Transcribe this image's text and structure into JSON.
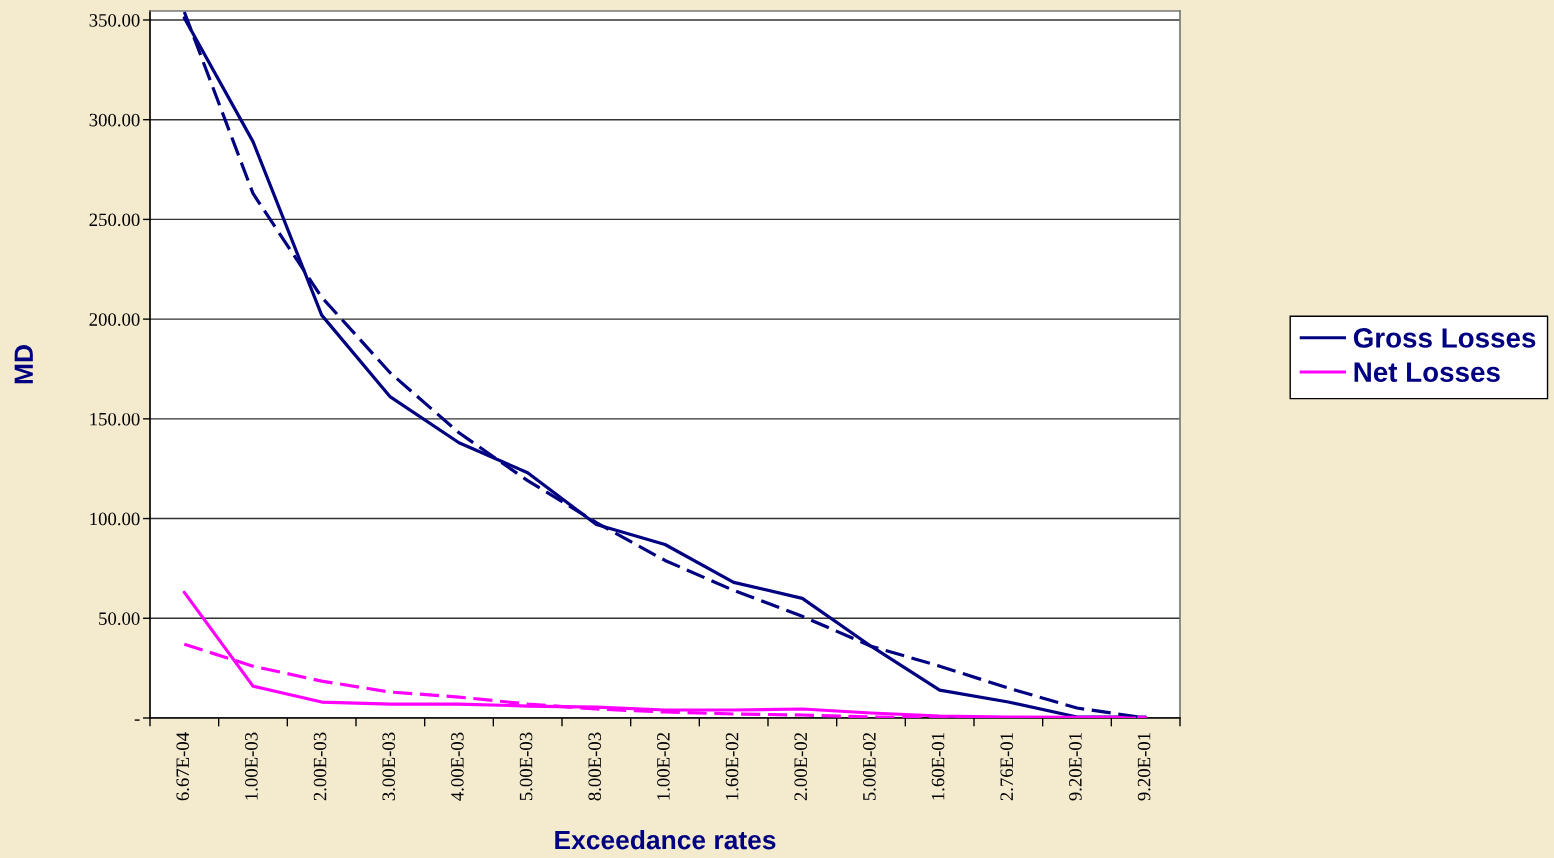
{
  "chart_data": {
    "type": "line",
    "xlabel": "Exceedance rates",
    "ylabel": "MD",
    "categories": [
      "6.67E-04",
      "1.00E-03",
      "2.00E-03",
      "3.00E-03",
      "4.00E-03",
      "5.00E-03",
      "8.00E-03",
      "1.00E-02",
      "1.60E-02",
      "2.00E-02",
      "5.00E-02",
      "1.60E-01",
      "2.76E-01",
      "9.20E-01",
      "9.20E-01"
    ],
    "series": [
      {
        "name": "Gross Losses",
        "color": "#000080",
        "values": [
          351,
          289,
          202,
          161,
          138,
          123,
          97,
          87,
          68,
          60,
          36,
          14,
          8,
          0.5,
          0.5
        ]
      },
      {
        "name": "Net Losses",
        "color": "#ff00ff",
        "values": [
          63,
          16,
          8,
          7,
          7,
          6,
          5.5,
          4,
          4,
          4.5,
          2.5,
          1,
          0.5,
          0.3,
          0.3
        ]
      },
      {
        "color": "#000080",
        "line_style": "dashed",
        "values": [
          354,
          263,
          211,
          173,
          143,
          119,
          98,
          79,
          64,
          51,
          36,
          26,
          15,
          5,
          0
        ]
      },
      {
        "color": "#ff00ff",
        "line_style": "dashed",
        "values": [
          37,
          26,
          18.5,
          13,
          10.5,
          7,
          4.5,
          3,
          2,
          1.5,
          0.5,
          0,
          0,
          0,
          0
        ]
      }
    ],
    "ylim": [
      0,
      354.5
    ],
    "yticks": [
      {
        "value": 0,
        "label": "-"
      },
      {
        "value": 50,
        "label": "50.00"
      },
      {
        "value": 100,
        "label": "100.00"
      },
      {
        "value": 150,
        "label": "150.00"
      },
      {
        "value": 200,
        "label": "200.00"
      },
      {
        "value": 250,
        "label": "250.00"
      },
      {
        "value": 300,
        "label": "300.00"
      },
      {
        "value": 350,
        "label": "350.00"
      }
    ],
    "grid": "y",
    "legend": "right",
    "line_style": "solid"
  }
}
